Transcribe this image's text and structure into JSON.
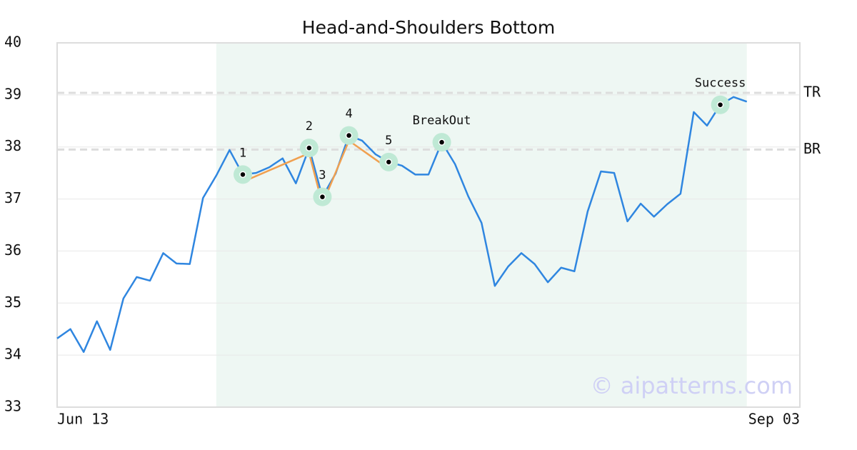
{
  "chart_data": {
    "type": "line",
    "title": "Head-and-Shoulders Bottom",
    "x": [
      0,
      1,
      2,
      3,
      4,
      5,
      6,
      7,
      8,
      9,
      10,
      11,
      12,
      13,
      14,
      15,
      16,
      17,
      18,
      19,
      20,
      21,
      22,
      23,
      24,
      25,
      26,
      27,
      28,
      29,
      30,
      31,
      32,
      33,
      34,
      35,
      36,
      37,
      38,
      39,
      40,
      41,
      42,
      43,
      44,
      45,
      46,
      47,
      48,
      49,
      50,
      51,
      52
    ],
    "xlim": [
      0,
      56
    ],
    "xticks": [
      {
        "value": 0,
        "label": "Jun 13"
      },
      {
        "value": 56,
        "label": "Sep 03"
      }
    ],
    "ylim": [
      33,
      40
    ],
    "yticks": [
      33,
      34,
      35,
      36,
      37,
      38,
      39,
      40
    ],
    "grid": true,
    "series": [
      {
        "color": "#2f86e0",
        "values": [
          34.32,
          34.5,
          34.06,
          34.65,
          34.1,
          35.09,
          35.5,
          35.43,
          35.96,
          35.76,
          35.75,
          37.02,
          37.45,
          37.94,
          37.47,
          37.5,
          37.61,
          37.78,
          37.3,
          37.98,
          37.04,
          37.49,
          38.22,
          38.12,
          37.86,
          37.71,
          37.64,
          37.47,
          37.47,
          38.09,
          37.67,
          37.05,
          36.54,
          35.33,
          35.7,
          35.96,
          35.75,
          35.4,
          35.68,
          35.61,
          36.76,
          37.53,
          37.5,
          36.57,
          36.91,
          36.66,
          36.9,
          37.1,
          38.67,
          38.41,
          38.81,
          38.96,
          38.87
        ]
      },
      {
        "color": "#f0a050",
        "x": [
          14,
          19,
          20,
          22,
          25
        ],
        "values": [
          37.33,
          37.88,
          36.9,
          38.12,
          37.58
        ]
      }
    ],
    "shade_range": [
      12,
      52
    ],
    "shade_color": "#eef7f3",
    "levels": [
      {
        "label": "TR",
        "value": 39.04
      },
      {
        "label": "BR",
        "value": 37.95
      }
    ],
    "annotations": [
      {
        "text": "1",
        "x": 14,
        "y": 37.47
      },
      {
        "text": "2",
        "x": 19,
        "y": 37.98
      },
      {
        "text": "3",
        "x": 20,
        "y": 37.04
      },
      {
        "text": "4",
        "x": 22,
        "y": 38.22
      },
      {
        "text": "5",
        "x": 25,
        "y": 37.71
      },
      {
        "text": "BreakOut",
        "x": 29,
        "y": 38.09
      },
      {
        "text": "Success",
        "x": 50,
        "y": 38.81
      }
    ],
    "watermark": "© aipatterns.com"
  }
}
